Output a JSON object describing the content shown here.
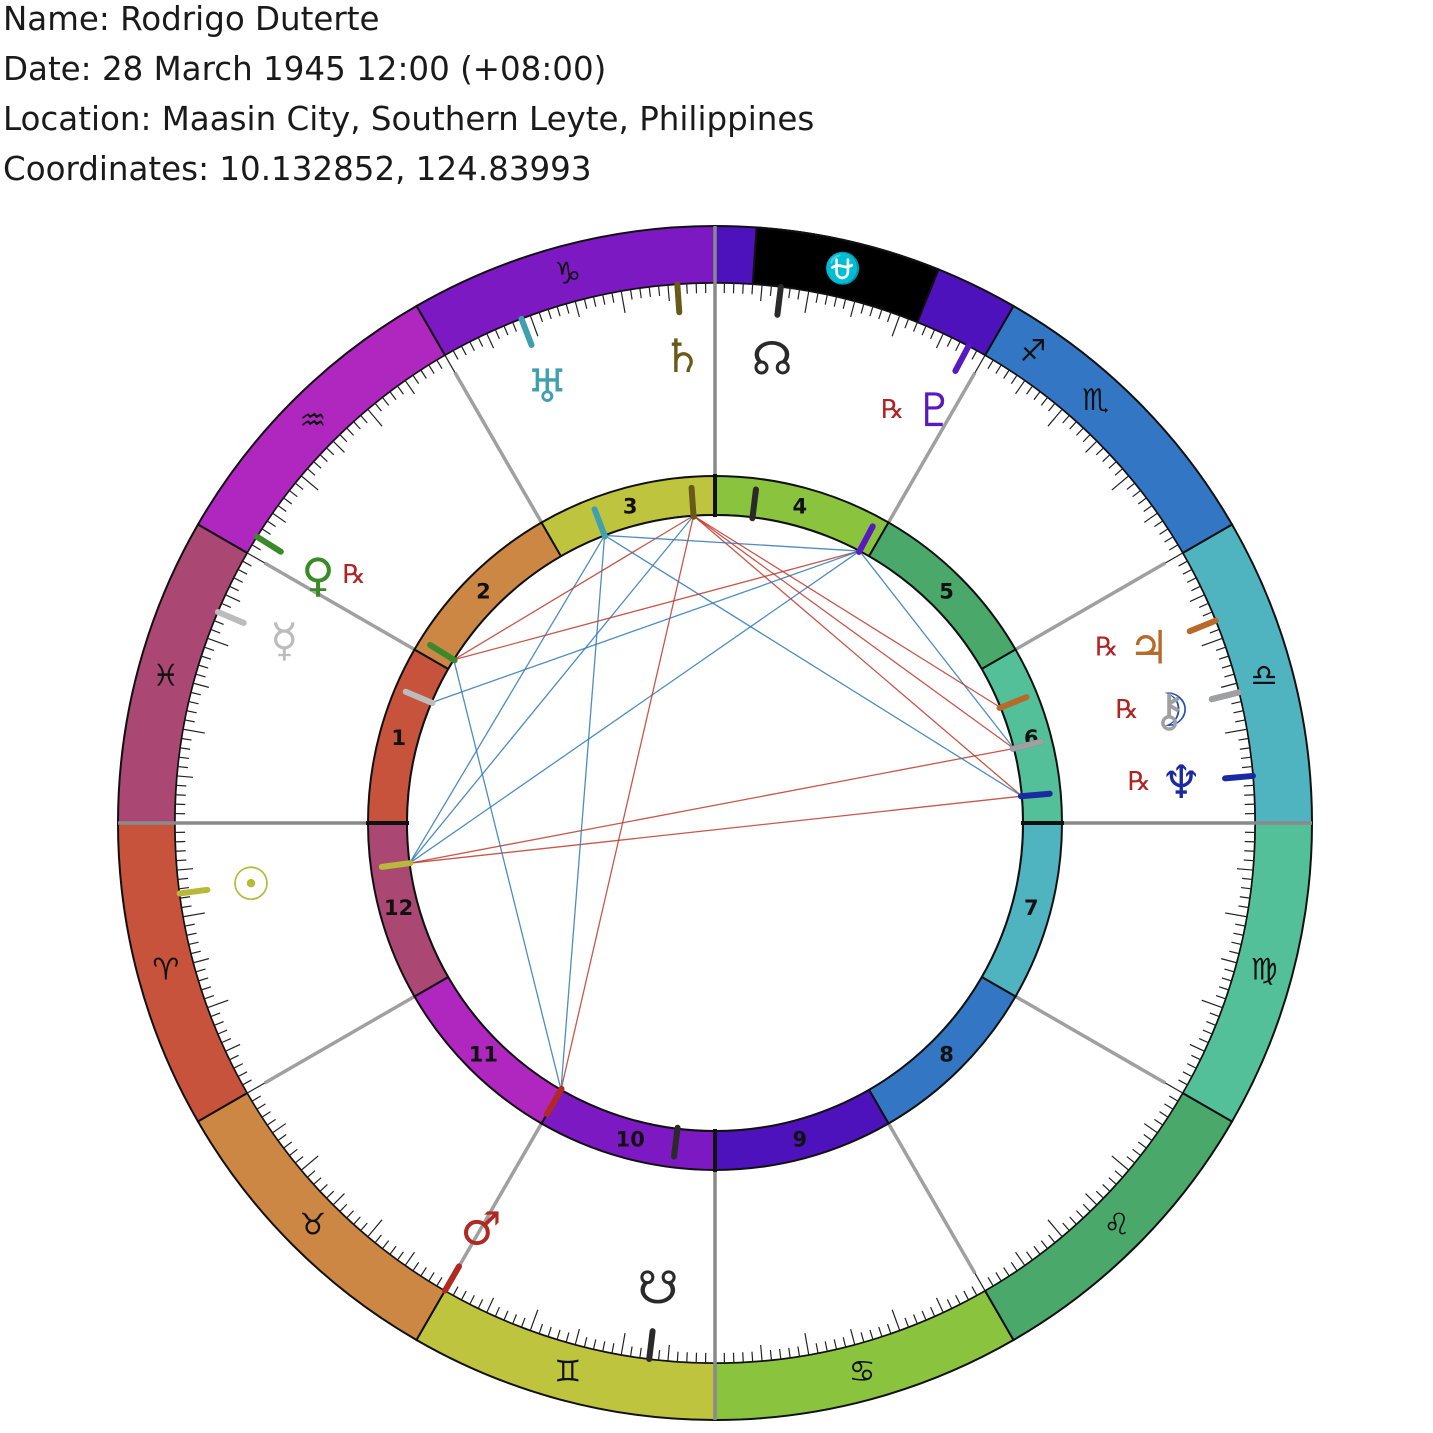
{
  "header": {
    "name": "Name: Rodrigo Duterte",
    "date": "Date: 28 March 1945 12:00 (+08:00)",
    "location": "Location: Maasin City, Southern Leyte, Philippines",
    "coordinates": "Coordinates: 10.132852, 124.83993"
  },
  "chart": {
    "ascendant_longitude": 360,
    "signs": [
      {
        "name": "Aries",
        "glyph": "♈",
        "color": "#c7533c"
      },
      {
        "name": "Taurus",
        "glyph": "♉",
        "color": "#cb8743"
      },
      {
        "name": "Gemini",
        "glyph": "♊",
        "color": "#bfc43f"
      },
      {
        "name": "Cancer",
        "glyph": "♋",
        "color": "#8ac43f"
      },
      {
        "name": "Leo",
        "glyph": "♌",
        "color": "#4aa86b"
      },
      {
        "name": "Virgo",
        "glyph": "♍",
        "color": "#53c09a"
      },
      {
        "name": "Libra",
        "glyph": "♎",
        "color": "#4fb3c0"
      },
      {
        "name": "Scorpio",
        "glyph": "♏",
        "color": "#3376c4"
      },
      {
        "name": "Sagittarius",
        "glyph": "♐",
        "color": "#4e12bc"
      },
      {
        "name": "Capricorn",
        "glyph": "♑",
        "color": "#7c19c2"
      },
      {
        "name": "Aquarius",
        "glyph": "♒",
        "color": "#b027c0"
      },
      {
        "name": "Pisces",
        "glyph": "♓",
        "color": "#aa4773"
      }
    ],
    "ophiuchus": {
      "name": "Ophiuchus",
      "glyph": "⛎",
      "color": "#000000",
      "start": 248,
      "end": 266
    },
    "houses": [
      {
        "num": "1",
        "cusp": 360,
        "color": "#c7533c"
      },
      {
        "num": "2",
        "cusp": 330,
        "color": "#cb8743"
      },
      {
        "num": "3",
        "cusp": 300,
        "color": "#bfc43f"
      },
      {
        "num": "4",
        "cusp": 270,
        "color": "#8ac43f"
      },
      {
        "num": "5",
        "cusp": 240,
        "color": "#4aa86b"
      },
      {
        "num": "6",
        "cusp": 210,
        "color": "#53c09a"
      },
      {
        "num": "7",
        "cusp": 180,
        "color": "#4fb3c0"
      },
      {
        "num": "8",
        "cusp": 150,
        "color": "#3376c4"
      },
      {
        "num": "9",
        "cusp": 120,
        "color": "#4e12bc"
      },
      {
        "num": "10",
        "cusp": 90,
        "color": "#7c19c2"
      },
      {
        "num": "11",
        "cusp": 60,
        "color": "#b027c0"
      },
      {
        "num": "12",
        "cusp": 30,
        "color": "#aa4773"
      }
    ],
    "planets": [
      {
        "name": "Sun",
        "glyph": "☉",
        "lon": 7.5,
        "color": "#b8b83a",
        "retro": false
      },
      {
        "name": "Moon",
        "glyph": "☽",
        "lon": 194,
        "color": "#2050b0",
        "retro": false
      },
      {
        "name": "Mercury",
        "glyph": "☿",
        "lon": 337,
        "color": "#bcbcbc",
        "retro": false
      },
      {
        "name": "Venus",
        "glyph": "♀",
        "lon": 328,
        "color": "#3a8a2a",
        "retro": true
      },
      {
        "name": "Mars",
        "glyph": "♂",
        "lon": 60,
        "color": "#b02a22",
        "retro": false
      },
      {
        "name": "Jupiter",
        "glyph": "♃",
        "lon": 202,
        "color": "#b86a2a",
        "retro": true
      },
      {
        "name": "Saturn",
        "glyph": "♄",
        "lon": 274,
        "color": "#6a5a1a",
        "retro": false
      },
      {
        "name": "Uranus",
        "glyph": "♅",
        "lon": 291,
        "color": "#40a0b0",
        "retro": false
      },
      {
        "name": "Neptune",
        "glyph": "♆",
        "lon": 185,
        "color": "#1a2aa0",
        "retro": true
      },
      {
        "name": "Pluto",
        "glyph": "♇",
        "lon": 242,
        "color": "#5a18c0",
        "retro": true
      },
      {
        "name": "Chiron",
        "glyph": "⚷",
        "lon": 194,
        "color": "#a0a0a0",
        "retro": true
      },
      {
        "name": "North Node",
        "glyph": "☊",
        "lon": 263,
        "color": "#2a2a2a",
        "retro": false
      },
      {
        "name": "South Node",
        "glyph": "☋",
        "lon": 83,
        "color": "#2a2a2a",
        "retro": false
      }
    ],
    "retrograde_symbol": "℞",
    "aspects": [
      {
        "a": 7.5,
        "b": 185,
        "color": "#c0392b"
      },
      {
        "a": 7.5,
        "b": 194,
        "color": "#c0392b"
      },
      {
        "a": 7.5,
        "b": 242,
        "color": "#2e7ab8"
      },
      {
        "a": 7.5,
        "b": 274,
        "color": "#2e7ab8"
      },
      {
        "a": 7.5,
        "b": 291,
        "color": "#2e7ab8"
      },
      {
        "a": 60,
        "b": 274,
        "color": "#c0392b"
      },
      {
        "a": 60,
        "b": 291,
        "color": "#2e7ab8"
      },
      {
        "a": 60,
        "b": 328,
        "color": "#2e7ab8"
      },
      {
        "a": 185,
        "b": 274,
        "color": "#c0392b"
      },
      {
        "a": 194,
        "b": 274,
        "color": "#c0392b"
      },
      {
        "a": 185,
        "b": 291,
        "color": "#2e7ab8"
      },
      {
        "a": 194,
        "b": 242,
        "color": "#2e7ab8"
      },
      {
        "a": 328,
        "b": 242,
        "color": "#c0392b"
      },
      {
        "a": 328,
        "b": 274,
        "color": "#c0392b"
      },
      {
        "a": 337,
        "b": 242,
        "color": "#2e7ab8"
      },
      {
        "a": 242,
        "b": 291,
        "color": "#2e7ab8"
      },
      {
        "a": 202,
        "b": 274,
        "color": "#c0392b"
      }
    ]
  }
}
